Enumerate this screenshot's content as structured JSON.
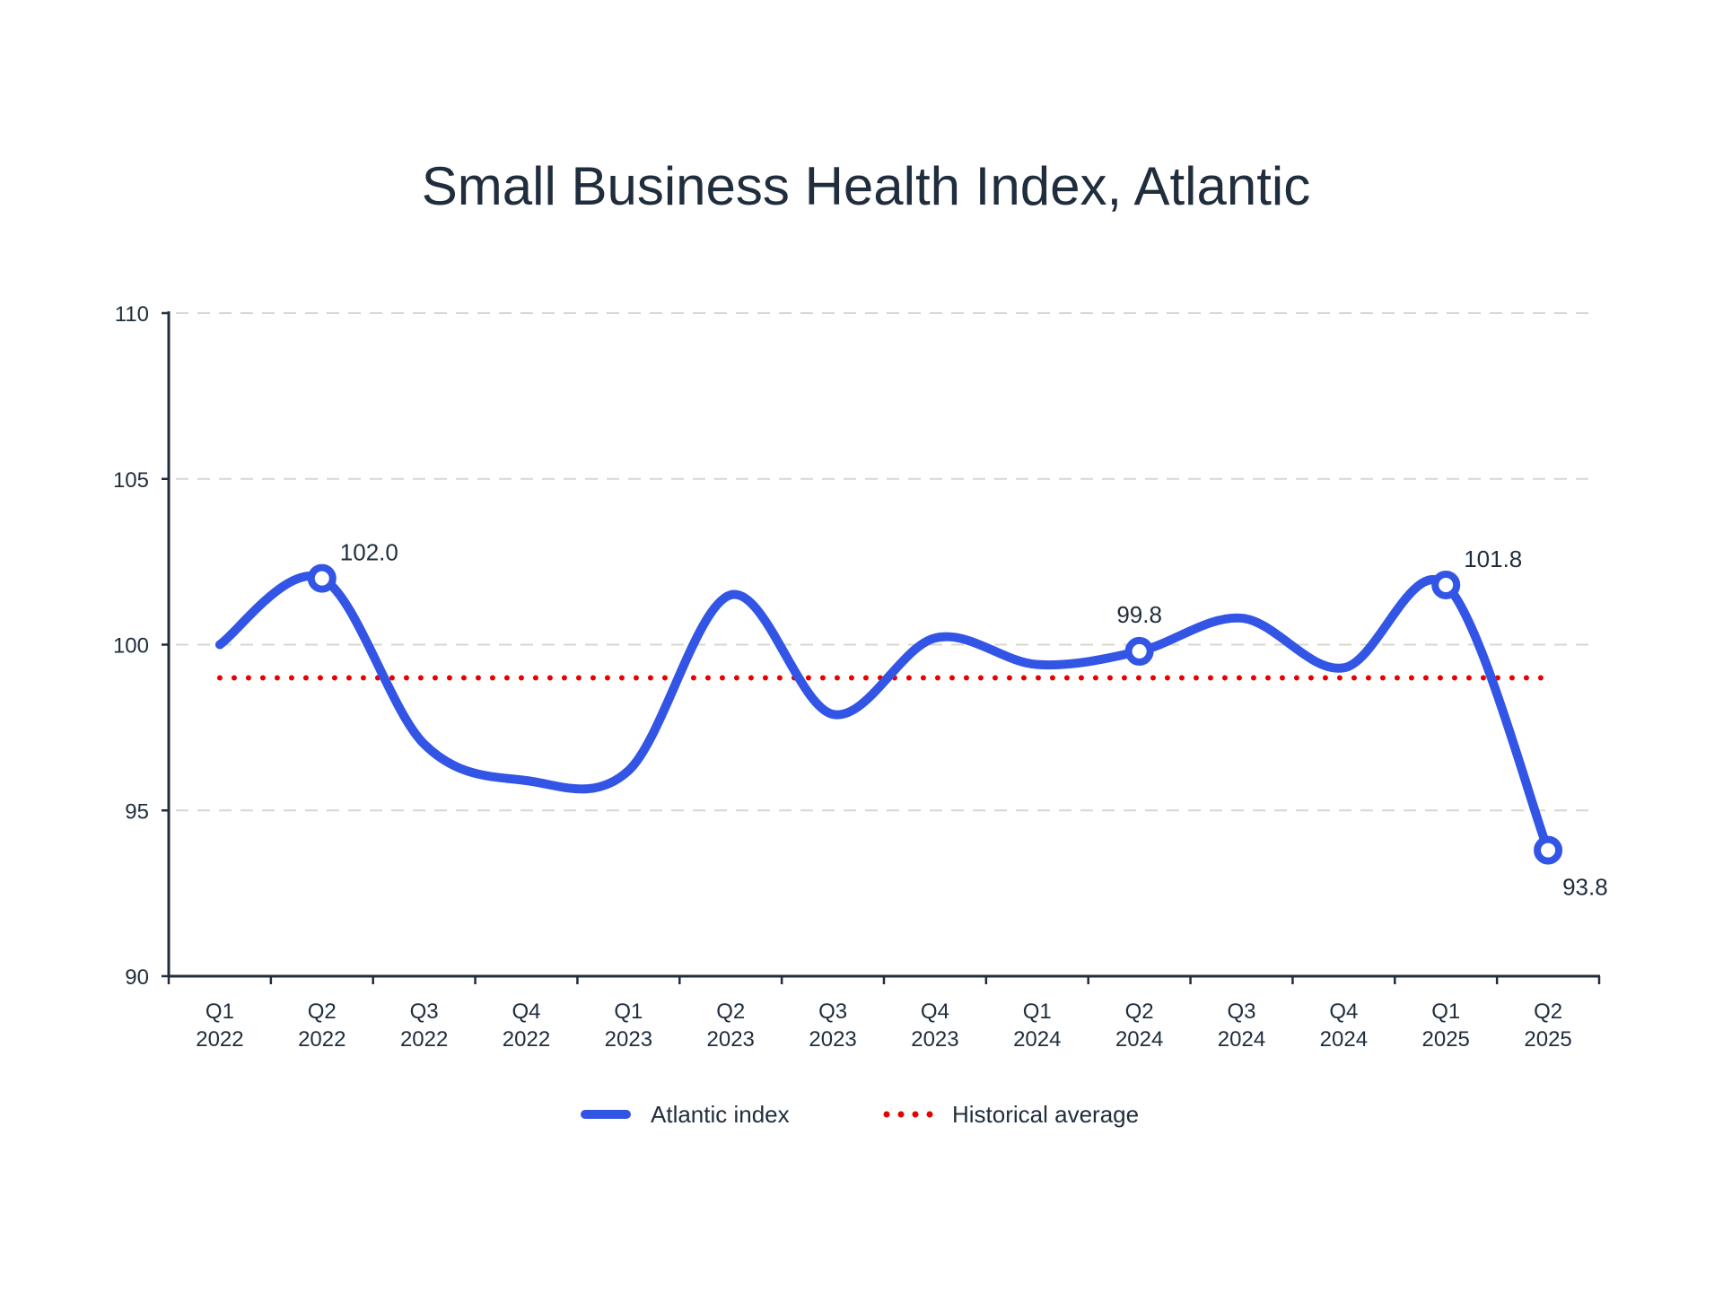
{
  "chart_data": {
    "type": "line",
    "title": "Small Business Health Index, Atlantic",
    "xlabel": "",
    "ylabel": "",
    "ylim": [
      90,
      110
    ],
    "yticks": [
      90,
      95,
      100,
      105,
      110
    ],
    "grid": true,
    "categories": [
      [
        "Q1",
        "2022"
      ],
      [
        "Q2",
        "2022"
      ],
      [
        "Q3",
        "2022"
      ],
      [
        "Q4",
        "2022"
      ],
      [
        "Q1",
        "2023"
      ],
      [
        "Q2",
        "2023"
      ],
      [
        "Q3",
        "2023"
      ],
      [
        "Q4",
        "2023"
      ],
      [
        "Q1",
        "2024"
      ],
      [
        "Q2",
        "2024"
      ],
      [
        "Q3",
        "2024"
      ],
      [
        "Q4",
        "2024"
      ],
      [
        "Q1",
        "2025"
      ],
      [
        "Q2",
        "2025"
      ]
    ],
    "series": [
      {
        "name": "Atlantic index",
        "color": "#3355e6",
        "style": "solid-smooth",
        "values": [
          100.0,
          102.0,
          97.0,
          95.9,
          96.2,
          101.5,
          97.9,
          100.2,
          99.4,
          99.8,
          100.8,
          99.3,
          101.8,
          93.8
        ]
      },
      {
        "name": "Historical average",
        "color": "#e60000",
        "style": "dotted",
        "values": [
          99.0,
          99.0,
          99.0,
          99.0,
          99.0,
          99.0,
          99.0,
          99.0,
          99.0,
          99.0,
          99.0,
          99.0,
          99.0,
          99.0
        ]
      }
    ],
    "annotations": [
      {
        "index": 1,
        "label": "102.0",
        "position": "above-right"
      },
      {
        "index": 9,
        "label": "99.8",
        "position": "above"
      },
      {
        "index": 12,
        "label": "101.8",
        "position": "above-right"
      },
      {
        "index": 13,
        "label": "93.8",
        "position": "below-right"
      }
    ],
    "legend": {
      "placement": "bottom-center",
      "entries": [
        "Atlantic index",
        "Historical average"
      ]
    }
  }
}
